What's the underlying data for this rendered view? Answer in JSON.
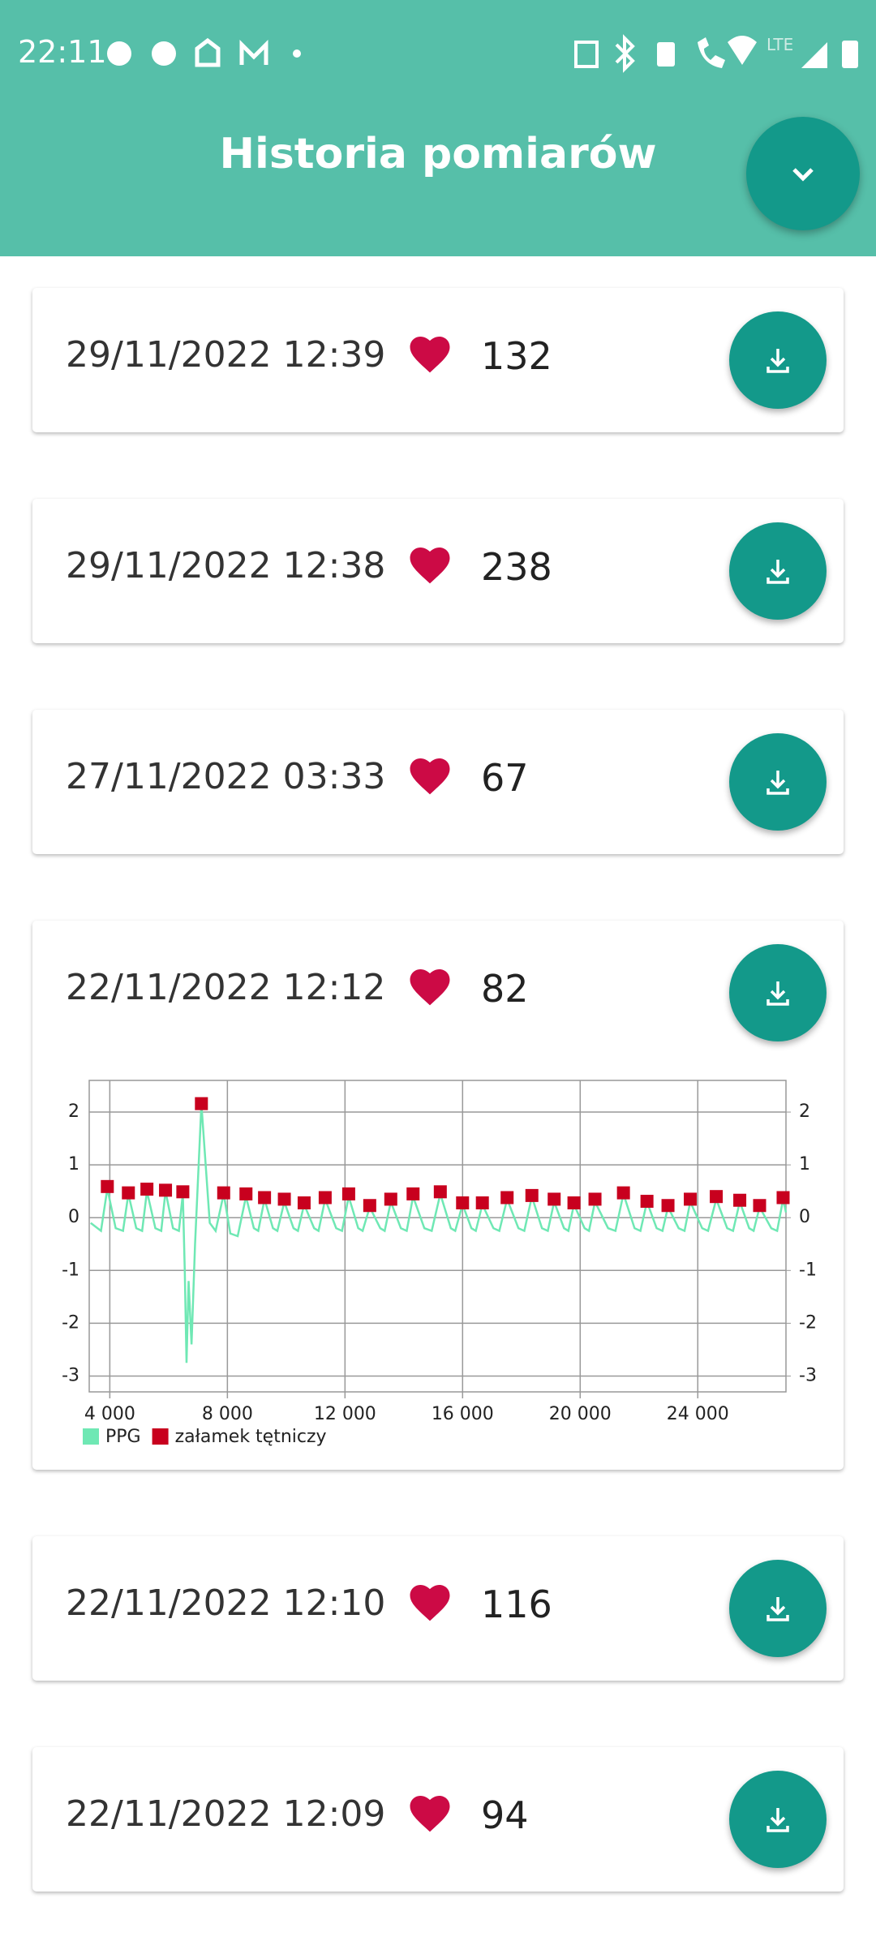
{
  "status_bar": {
    "time": "22:11",
    "network": "LTE"
  },
  "header": {
    "title": "Historia pomiarów"
  },
  "items": [
    {
      "datetime": "29/11/2022 12:39",
      "bpm": 132
    },
    {
      "datetime": "29/11/2022 12:38",
      "bpm": 238
    },
    {
      "datetime": "27/11/2022 03:33",
      "bpm": 67
    },
    {
      "datetime": "22/11/2022 12:12",
      "bpm": 82
    },
    {
      "datetime": "22/11/2022 12:10",
      "bpm": 116
    },
    {
      "datetime": "22/11/2022 12:09",
      "bpm": 94
    }
  ],
  "chart_data": {
    "type": "line",
    "xlim": [
      3300,
      27000
    ],
    "xticks": [
      {
        "value": 4000,
        "label": "4 000"
      },
      {
        "value": 8000,
        "label": "8 000"
      },
      {
        "value": 12000,
        "label": "12 000"
      },
      {
        "value": 16000,
        "label": "16 000"
      },
      {
        "value": 20000,
        "label": "20 000"
      },
      {
        "value": 24000,
        "label": "24 000"
      }
    ],
    "ylim": [
      -3.3,
      2.6
    ],
    "yticks": [
      -3,
      -2,
      -1,
      0,
      1,
      2
    ],
    "y2lim": [
      -3.3,
      2.6
    ],
    "y2ticks": [
      -3,
      -2,
      -1,
      0,
      1,
      2
    ],
    "grid": true,
    "legend": "bottom-left",
    "series": [
      {
        "name": "PPG",
        "color": "#6fe8b4",
        "type": "line",
        "x": [
          3350,
          3700,
          3916,
          4200,
          4450,
          4632,
          4900,
          5100,
          5263,
          5550,
          5750,
          5895,
          6150,
          6350,
          6484,
          6550,
          6610,
          6680,
          6780,
          6900,
          7116,
          7400,
          7600,
          7874,
          8100,
          8350,
          8632,
          8900,
          9050,
          9263,
          9550,
          9700,
          9937,
          10250,
          10400,
          10610,
          10950,
          11100,
          11326,
          11700,
          11900,
          12126,
          12450,
          12600,
          12842,
          13200,
          13350,
          13558,
          13900,
          14100,
          14316,
          14700,
          14950,
          15242,
          15600,
          15750,
          15999,
          16300,
          16450,
          16673,
          17050,
          17250,
          17515,
          17900,
          18100,
          18357,
          18700,
          18900,
          19115,
          19450,
          19600,
          19788,
          20150,
          20300,
          20504,
          20950,
          21200,
          21472,
          21850,
          22050,
          22272,
          22600,
          22800,
          22987,
          23350,
          23550,
          23745,
          24150,
          24350,
          24629,
          25000,
          25200,
          25429,
          25750,
          25900,
          26103,
          26500,
          26700,
          26903,
          27000
        ],
        "values": [
          -0.1,
          -0.25,
          0.55,
          -0.2,
          -0.25,
          0.45,
          -0.2,
          -0.25,
          0.5,
          -0.2,
          -0.25,
          0.5,
          -0.2,
          -0.25,
          0.45,
          -1.0,
          -2.75,
          -1.2,
          -2.4,
          -0.5,
          2.15,
          -0.1,
          -0.25,
          0.45,
          -0.3,
          -0.35,
          0.4,
          -0.2,
          -0.25,
          0.35,
          -0.2,
          -0.25,
          0.3,
          -0.2,
          -0.25,
          0.25,
          -0.2,
          -0.25,
          0.35,
          -0.2,
          -0.25,
          0.4,
          -0.2,
          -0.25,
          0.2,
          -0.2,
          -0.25,
          0.3,
          -0.2,
          -0.25,
          0.4,
          -0.2,
          -0.25,
          0.45,
          -0.2,
          -0.25,
          0.25,
          -0.2,
          -0.25,
          0.25,
          -0.2,
          -0.25,
          0.35,
          -0.2,
          -0.25,
          0.4,
          -0.2,
          -0.25,
          0.3,
          -0.2,
          -0.25,
          0.25,
          -0.2,
          -0.25,
          0.3,
          -0.2,
          -0.25,
          0.45,
          -0.2,
          -0.25,
          0.3,
          -0.2,
          -0.25,
          0.2,
          -0.2,
          -0.25,
          0.3,
          -0.2,
          -0.25,
          0.35,
          -0.2,
          -0.25,
          0.3,
          -0.2,
          -0.25,
          0.2,
          -0.2,
          -0.25,
          0.35,
          0.1
        ]
      },
      {
        "name": "załamek tętniczy",
        "color": "#c8001e",
        "type": "scatter",
        "x": [
          3916,
          4632,
          5263,
          5895,
          6484,
          7116,
          7874,
          8632,
          9263,
          9937,
          10610,
          11326,
          12126,
          12842,
          13558,
          14316,
          15242,
          15999,
          16673,
          17515,
          18357,
          19115,
          19788,
          20504,
          21472,
          22272,
          22987,
          23745,
          24629,
          25429,
          26103,
          26903
        ],
        "values": [
          0.59,
          0.47,
          0.54,
          0.52,
          0.49,
          2.16,
          0.47,
          0.45,
          0.38,
          0.35,
          0.28,
          0.38,
          0.45,
          0.23,
          0.35,
          0.45,
          0.49,
          0.28,
          0.28,
          0.38,
          0.42,
          0.35,
          0.28,
          0.35,
          0.47,
          0.31,
          0.23,
          0.35,
          0.4,
          0.33,
          0.23,
          0.38
        ]
      }
    ]
  }
}
